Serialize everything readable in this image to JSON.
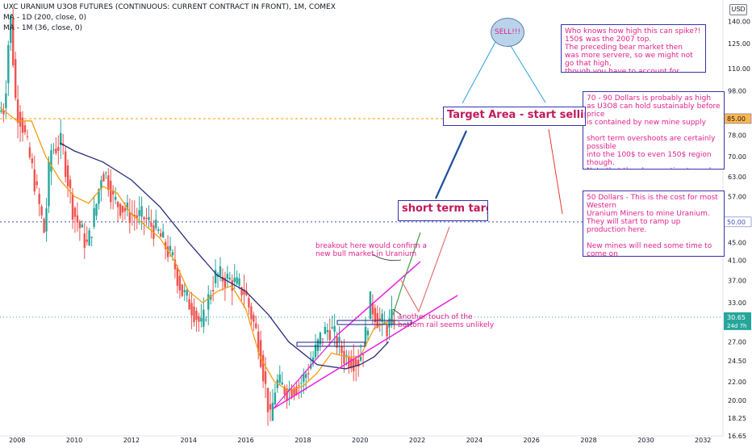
{
  "header": {
    "symbol_line": "UXC URANIUM U3O8 FUTURES (CONTINUOUS: CURRENT CONTRACT IN FRONT), 1M, COMEX",
    "ma1": "MA - 1D (200, close, 0)",
    "ma2": "MA - 1M (36, close, 0)",
    "currency": "USD"
  },
  "colors": {
    "up": "#26a69a",
    "down": "#ef5350",
    "ma200": "#f39c12",
    "ma36": "#2a2e7a",
    "channel": "#e91ee0",
    "note_text": "#e0218a",
    "hline85": "#ff9800",
    "hline50": "#3f51b5"
  },
  "price_labels": {
    "level85": "85.00",
    "level50": "50.00",
    "last_price": "30.65",
    "countdown": "24d 7h"
  },
  "annotations": {
    "sell": "SELL!!!",
    "note_top": "Who knows how high this can spike?!\n150$ was the 2007 top.\nThe preceding bear market then\nwas more servere, so we might not go that high,\nthough you have to account for inflation too.",
    "note_mid": "70 - 90 Dollars is probably as high\nas U3O8 can hold sustainably before price\nis contained by new mine supply\n\nshort term overshoots are certainly possible\ninto the 100$ to even 150$ region though.\nNote that the above estimates only account\nfor current fundamentals. A lot can change\nuntil then, and we have to adapt as we go.",
    "note_low": "50 Dollars - This is the cost for most Western\nUranium Miners to mine Uranium.\nThey will start to ramp up production here.\n\nNew mines will need some time to come on\ndue to the severe bear market of the past\ndecade.",
    "target_area": "Target Area - start selling here",
    "short_target": "short term target",
    "breakout": "breakout here would confirm a\nnew bull market in Uranium",
    "touch": "another touch of the\nbottom rail seems unlikely"
  },
  "chart_data": {
    "type": "candlestick",
    "title": "UXC URANIUM U3O8 FUTURES (CONTINUOUS: CURRENT CONTRACT IN FRONT), 1M, COMEX",
    "y_scale": "log",
    "ylim": [
      16.65,
      150
    ],
    "xlim": [
      2007.4,
      2032.7
    ],
    "x_ticks": [
      "2008",
      "2010",
      "2012",
      "2014",
      "2016",
      "2018",
      "2020",
      "2022",
      "2024",
      "2026",
      "2028",
      "2030",
      "2032"
    ],
    "y_ticks": [
      "140.00",
      "125.00",
      "110.00",
      "98.00",
      "85.00",
      "78.00",
      "70.00",
      "63.00",
      "57.00",
      "50.00",
      "45.00",
      "41.00",
      "37.00",
      "33.00",
      "30.00",
      "27.00",
      "24.50",
      "22.00",
      "20.00",
      "18.25",
      "16.65"
    ],
    "horizontal_levels": [
      85,
      50
    ],
    "last_price": 30.65,
    "price_path": [
      [
        2007.4,
        88
      ],
      [
        2007.6,
        90
      ],
      [
        2007.8,
        148
      ],
      [
        2008.0,
        90
      ],
      [
        2008.2,
        84
      ],
      [
        2008.6,
        64
      ],
      [
        2009.0,
        47
      ],
      [
        2009.2,
        72
      ],
      [
        2009.6,
        75
      ],
      [
        2010.0,
        53
      ],
      [
        2010.5,
        44
      ],
      [
        2010.8,
        54
      ],
      [
        2011.0,
        65
      ],
      [
        2011.2,
        63
      ],
      [
        2011.4,
        56
      ],
      [
        2012.0,
        52
      ],
      [
        2012.5,
        51
      ],
      [
        2013.0,
        47
      ],
      [
        2013.5,
        41
      ],
      [
        2013.8,
        35
      ],
      [
        2014.2,
        32
      ],
      [
        2014.5,
        29
      ],
      [
        2014.8,
        35
      ],
      [
        2015.0,
        38
      ],
      [
        2015.5,
        37
      ],
      [
        2016.0,
        35
      ],
      [
        2016.5,
        27
      ],
      [
        2016.9,
        18
      ],
      [
        2017.1,
        22
      ],
      [
        2017.5,
        21
      ],
      [
        2018.0,
        22
      ],
      [
        2018.3,
        24
      ],
      [
        2018.7,
        28
      ],
      [
        2019.0,
        29
      ],
      [
        2019.5,
        25
      ],
      [
        2020.0,
        24.5
      ],
      [
        2020.2,
        27
      ],
      [
        2020.4,
        33
      ],
      [
        2020.7,
        30
      ],
      [
        2021.0,
        29
      ],
      [
        2021.2,
        30.65
      ]
    ],
    "series": [
      {
        "name": "MA - 1D (200, close, 0)",
        "points": [
          [
            2007.4,
            90
          ],
          [
            2008.0,
            84
          ],
          [
            2008.5,
            84
          ],
          [
            2009.0,
            70
          ],
          [
            2009.5,
            62
          ],
          [
            2010.0,
            57
          ],
          [
            2010.5,
            55
          ],
          [
            2011.0,
            60
          ],
          [
            2011.5,
            58
          ],
          [
            2012.0,
            52
          ],
          [
            2012.5,
            49
          ],
          [
            2013.0,
            46
          ],
          [
            2013.5,
            41
          ],
          [
            2014.0,
            35
          ],
          [
            2014.5,
            33
          ],
          [
            2015.0,
            35
          ],
          [
            2015.5,
            36
          ],
          [
            2016.0,
            32
          ],
          [
            2016.5,
            25
          ],
          [
            2017.0,
            22
          ],
          [
            2017.5,
            21
          ],
          [
            2018.0,
            21.5
          ],
          [
            2018.5,
            23
          ],
          [
            2019.0,
            25.5
          ],
          [
            2019.5,
            25
          ],
          [
            2020.0,
            25
          ],
          [
            2020.5,
            29
          ],
          [
            2021.0,
            30
          ]
        ]
      },
      {
        "name": "MA - 1M (36, close, 0)",
        "points": [
          [
            2009.5,
            75
          ],
          [
            2010.0,
            72
          ],
          [
            2011.0,
            68
          ],
          [
            2012.0,
            62
          ],
          [
            2013.0,
            54
          ],
          [
            2014.0,
            45
          ],
          [
            2015.0,
            38
          ],
          [
            2016.0,
            35
          ],
          [
            2016.8,
            31
          ],
          [
            2017.5,
            27
          ],
          [
            2018.5,
            24
          ],
          [
            2019.5,
            23.5
          ],
          [
            2020.0,
            24
          ],
          [
            2020.5,
            25
          ],
          [
            2021.0,
            27
          ]
        ]
      }
    ]
  }
}
